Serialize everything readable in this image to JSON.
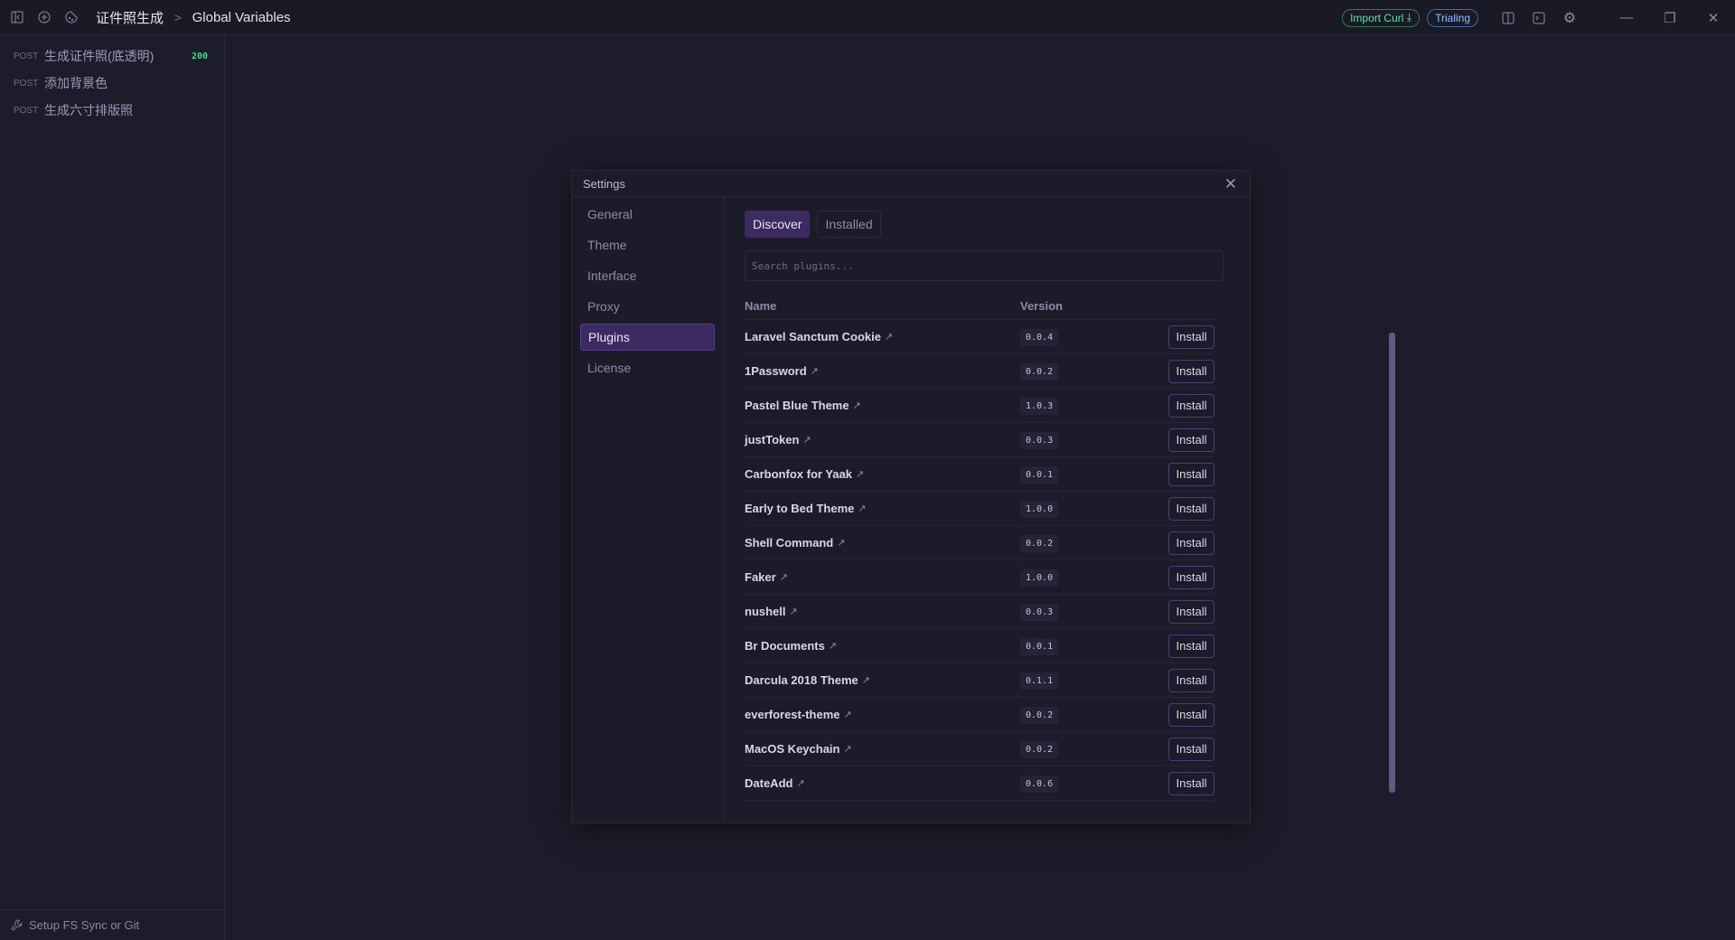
{
  "topbar": {
    "breadcrumb": [
      "证件照生成",
      "Global Variables"
    ],
    "import_curl": "Import Curl",
    "trialing": "Trialing"
  },
  "sidebar": {
    "requests": [
      {
        "method": "POST",
        "name": "生成证件照(底透明)",
        "status": "200"
      },
      {
        "method": "POST",
        "name": "添加背景色",
        "status": ""
      },
      {
        "method": "POST",
        "name": "生成六寸排版照",
        "status": ""
      }
    ],
    "footer": "Setup FS Sync or Git"
  },
  "settings": {
    "title": "Settings",
    "nav": [
      "General",
      "Theme",
      "Interface",
      "Proxy",
      "Plugins",
      "License"
    ],
    "active_nav": "Plugins",
    "tabs": [
      "Discover",
      "Installed"
    ],
    "active_tab": "Discover",
    "search_placeholder": "Search plugins...",
    "columns": {
      "name": "Name",
      "version": "Version"
    },
    "install_label": "Install",
    "plugins": [
      {
        "name": "Laravel Sanctum Cookie",
        "version": "0.0.4"
      },
      {
        "name": "1Password",
        "version": "0.0.2"
      },
      {
        "name": "Pastel Blue Theme",
        "version": "1.0.3"
      },
      {
        "name": "justToken",
        "version": "0.0.3"
      },
      {
        "name": "Carbonfox for Yaak",
        "version": "0.0.1"
      },
      {
        "name": "Early to Bed Theme",
        "version": "1.0.0"
      },
      {
        "name": "Shell Command",
        "version": "0.0.2"
      },
      {
        "name": "Faker",
        "version": "1.0.0"
      },
      {
        "name": "nushell",
        "version": "0.0.3"
      },
      {
        "name": "Br Documents",
        "version": "0.0.1"
      },
      {
        "name": "Darcula 2018 Theme",
        "version": "0.1.1"
      },
      {
        "name": "everforest-theme",
        "version": "0.0.2"
      },
      {
        "name": "MacOS Keychain",
        "version": "0.0.2"
      },
      {
        "name": "DateAdd",
        "version": "0.0.6"
      }
    ]
  },
  "colors": {
    "accent": "#3d2a63",
    "status_ok": "#3ddc84",
    "import_curl": "#5fe3a0",
    "trialing": "#8fc0ff"
  }
}
